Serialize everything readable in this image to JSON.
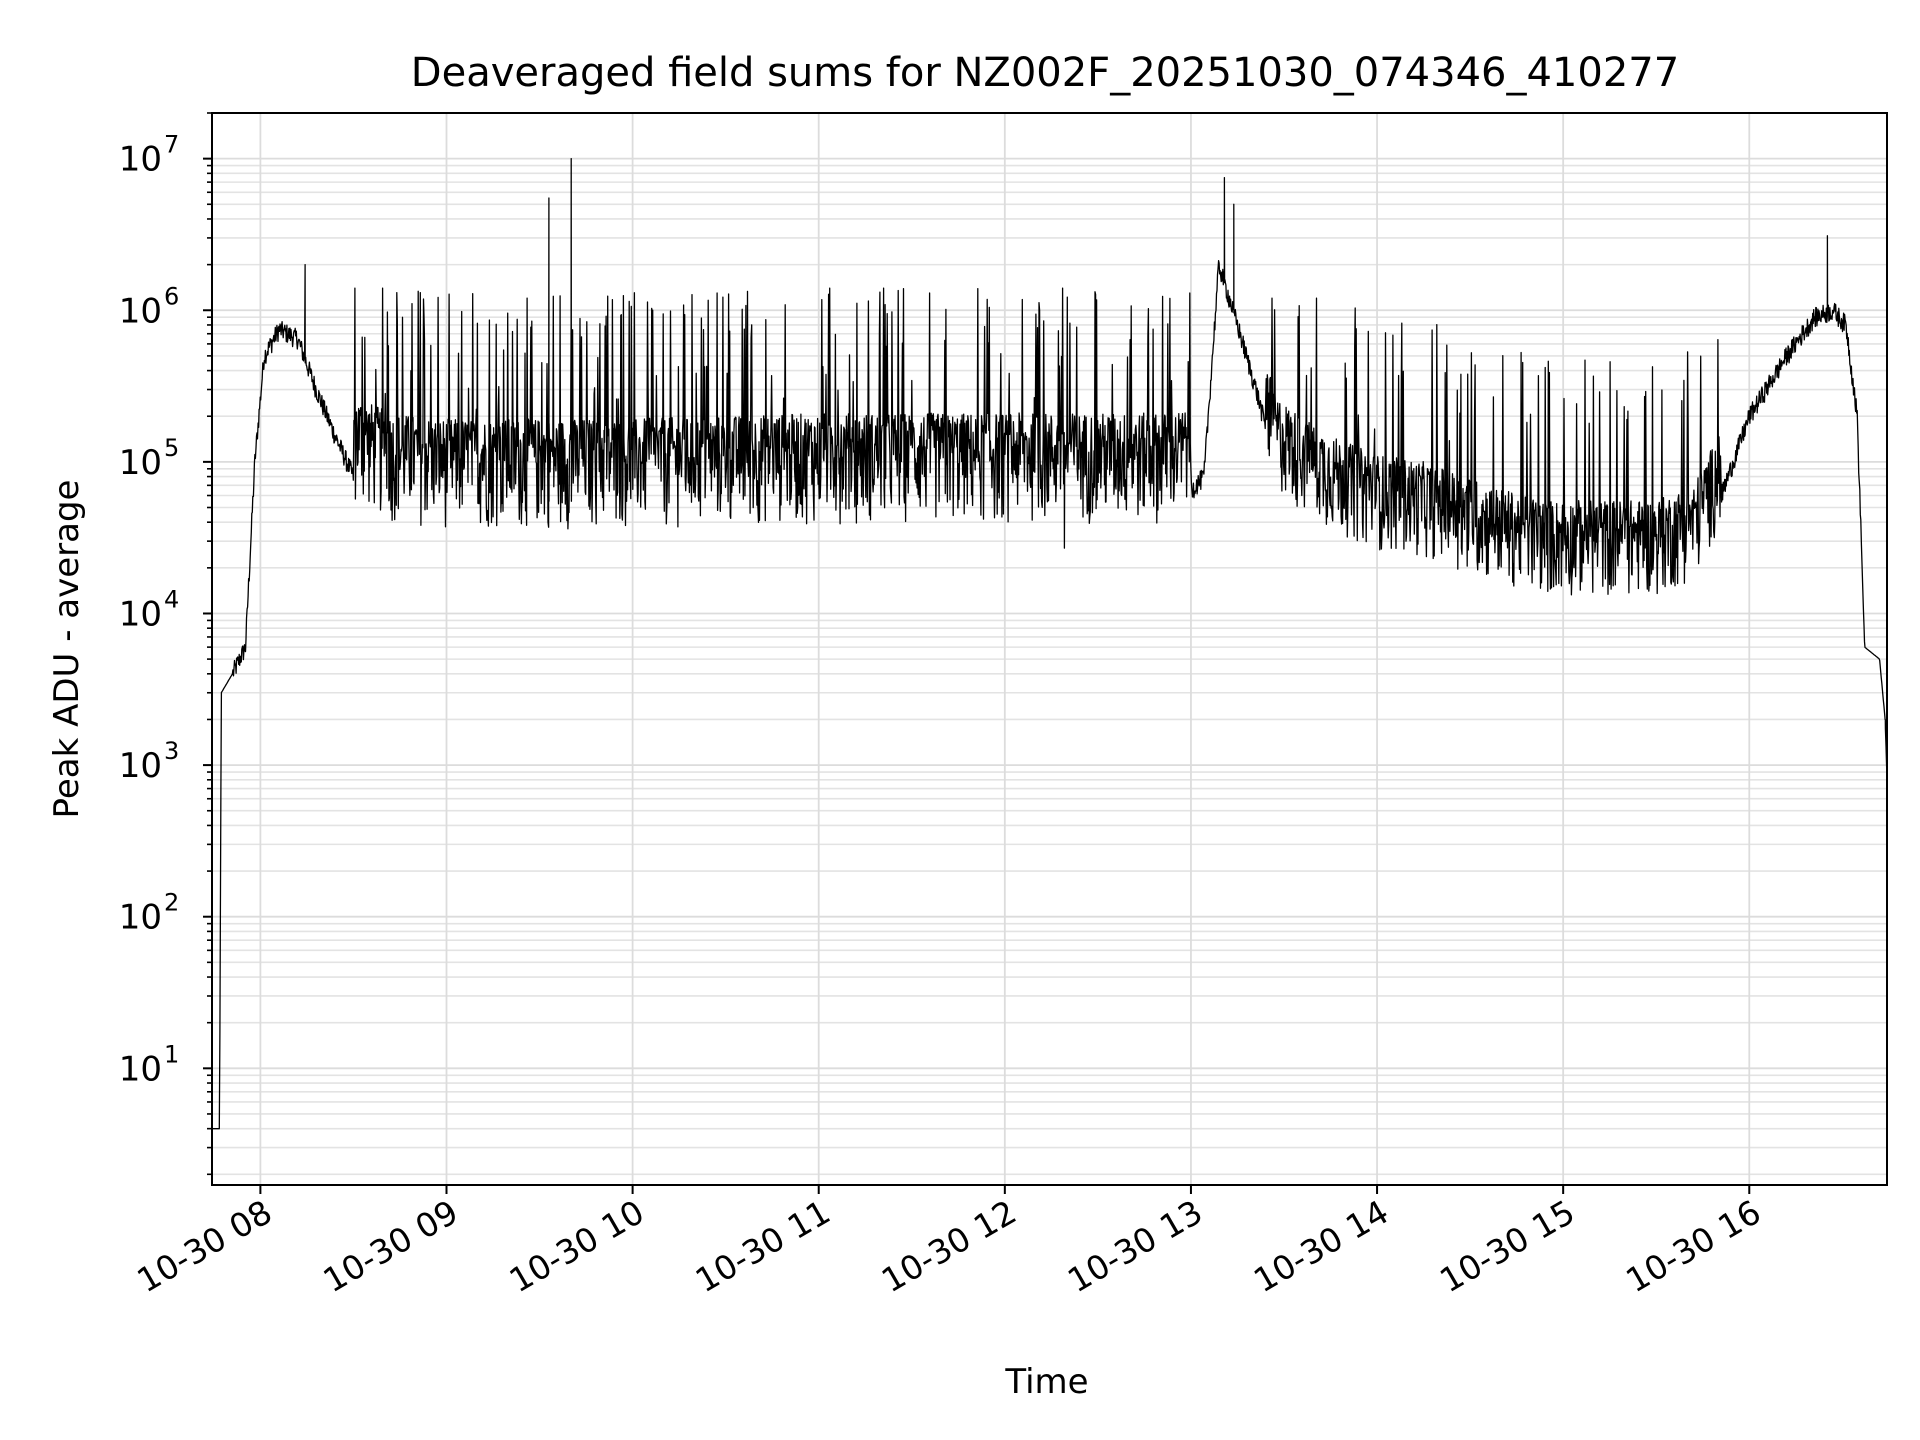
{
  "chart_data": {
    "type": "line",
    "title": "Deaveraged field sums for NZ002F_20251030_074346_410277",
    "xlabel": "Time",
    "ylabel": "Peak ADU - average",
    "yscale": "log",
    "ylim": [
      1.7,
      20000000
    ],
    "xlim_hours": [
      7.74,
      16.74
    ],
    "grid": true,
    "x_ticks": [
      {
        "hour": 8,
        "label": "10-30 08"
      },
      {
        "hour": 9,
        "label": "10-30 09"
      },
      {
        "hour": 10,
        "label": "10-30 10"
      },
      {
        "hour": 11,
        "label": "10-30 11"
      },
      {
        "hour": 12,
        "label": "10-30 12"
      },
      {
        "hour": 13,
        "label": "10-30 13"
      },
      {
        "hour": 14,
        "label": "10-30 14"
      },
      {
        "hour": 15,
        "label": "10-30 15"
      },
      {
        "hour": 16,
        "label": "10-30 16"
      }
    ],
    "y_ticks": [
      {
        "value": 10,
        "base": "10",
        "exp": "1"
      },
      {
        "value": 100,
        "base": "10",
        "exp": "2"
      },
      {
        "value": 1000,
        "base": "10",
        "exp": "3"
      },
      {
        "value": 10000,
        "base": "10",
        "exp": "4"
      },
      {
        "value": 100000,
        "base": "10",
        "exp": "5"
      },
      {
        "value": 1000000,
        "base": "10",
        "exp": "6"
      },
      {
        "value": 10000000,
        "base": "10",
        "exp": "7"
      }
    ],
    "series": [
      {
        "name": "deaveraged field sum",
        "color": "#000000",
        "baseline": [
          [
            7.74,
            4
          ],
          [
            7.78,
            4
          ],
          [
            7.79,
            3000
          ],
          [
            7.85,
            4000
          ],
          [
            7.92,
            6000
          ],
          [
            7.97,
            100000
          ],
          [
            8.02,
            500000
          ],
          [
            8.1,
            750000
          ],
          [
            8.2,
            650000
          ],
          [
            8.3,
            300000
          ],
          [
            8.4,
            150000
          ],
          [
            8.5,
            80000
          ],
          [
            8.7,
            60000
          ],
          [
            9.0,
            55000
          ],
          [
            10.0,
            55000
          ],
          [
            11.0,
            60000
          ],
          [
            12.0,
            60000
          ],
          [
            12.9,
            60000
          ],
          [
            13.0,
            65000
          ],
          [
            13.07,
            80000
          ],
          [
            13.15,
            2000000
          ],
          [
            13.25,
            800000
          ],
          [
            13.35,
            300000
          ],
          [
            13.45,
            100000
          ],
          [
            13.6,
            70000
          ],
          [
            13.8,
            50000
          ],
          [
            14.0,
            40000
          ],
          [
            14.3,
            35000
          ],
          [
            14.6,
            25000
          ],
          [
            14.9,
            20000
          ],
          [
            15.2,
            20000
          ],
          [
            15.5,
            20000
          ],
          [
            15.7,
            25000
          ],
          [
            15.85,
            60000
          ],
          [
            16.0,
            200000
          ],
          [
            16.2,
            500000
          ],
          [
            16.35,
            900000
          ],
          [
            16.45,
            1000000
          ],
          [
            16.52,
            800000
          ],
          [
            16.58,
            200000
          ],
          [
            16.62,
            6000
          ],
          [
            16.7,
            5000
          ],
          [
            16.73,
            2000
          ],
          [
            16.74,
            800
          ]
        ],
        "noisy_segments": [
          {
            "from": 8.5,
            "to": 13.0,
            "low_factor": 0.65,
            "high_factor": 3.5,
            "spike_prob": 0.09,
            "spike_max": 1400000
          },
          {
            "from": 13.4,
            "to": 15.85,
            "low_factor": 0.65,
            "high_factor": 2.8,
            "spike_prob": 0.07,
            "spike_max": 1200000
          }
        ],
        "spikes": [
          {
            "hour": 8.24,
            "value": 2000000
          },
          {
            "hour": 9.55,
            "value": 5500000
          },
          {
            "hour": 9.67,
            "value": 10000000
          },
          {
            "hour": 12.32,
            "value": 27000
          },
          {
            "hour": 13.18,
            "value": 7500000
          },
          {
            "hour": 13.23,
            "value": 5000000
          },
          {
            "hour": 16.42,
            "value": 3100000
          },
          {
            "hour": 16.73,
            "value": 2000
          }
        ]
      }
    ]
  }
}
